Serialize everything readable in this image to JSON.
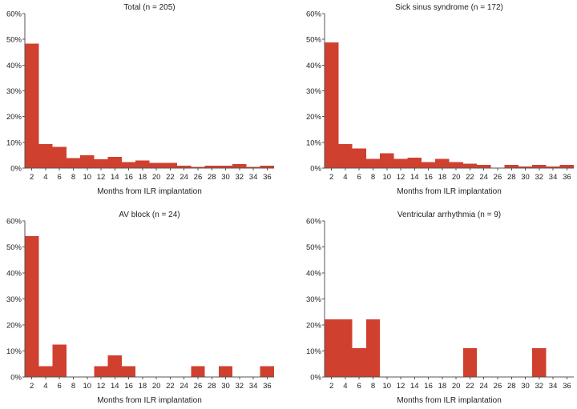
{
  "colors": {
    "bar": "#d0402f",
    "axis": "#555555"
  },
  "chart_data": [
    {
      "type": "bar",
      "id": "total",
      "title": "Total (n = 205)",
      "xlabel": "Months from ILR implantation",
      "ylabel": "",
      "ylim": [
        0,
        60
      ],
      "xlim": [
        1,
        37
      ],
      "bin_width": 2,
      "y_ticks": [
        0,
        10,
        20,
        30,
        40,
        50,
        60
      ],
      "y_tick_labels": [
        "0%",
        "10%",
        "20%",
        "30%",
        "40%",
        "50%",
        "60%"
      ],
      "x_ticks": [
        2,
        4,
        6,
        8,
        10,
        12,
        14,
        16,
        18,
        20,
        22,
        24,
        26,
        28,
        30,
        32,
        34,
        36
      ],
      "x_tick_labels": [
        "2",
        "4",
        "6",
        "8",
        "10",
        "12",
        "14",
        "16",
        "18",
        "20",
        "22",
        "24",
        "26",
        "28",
        "30",
        "32",
        "34",
        "36"
      ],
      "bins_start": [
        1,
        3,
        5,
        7,
        9,
        11,
        13,
        15,
        17,
        19,
        21,
        23,
        25,
        27,
        29,
        31,
        33,
        35
      ],
      "values": [
        48.3,
        9.3,
        8.3,
        3.9,
        4.9,
        3.4,
        4.4,
        2.4,
        2.9,
        2.0,
        2.0,
        1.0,
        0.5,
        1.0,
        1.0,
        1.5,
        0.5,
        1.0
      ]
    },
    {
      "type": "bar",
      "id": "sick-sinus",
      "title": "Sick sinus syndrome (n = 172)",
      "xlabel": "Months from ILR implantation",
      "ylabel": "",
      "ylim": [
        0,
        60
      ],
      "xlim": [
        1,
        37
      ],
      "bin_width": 2,
      "y_ticks": [
        0,
        10,
        20,
        30,
        40,
        50,
        60
      ],
      "y_tick_labels": [
        "0%",
        "10%",
        "20%",
        "30%",
        "40%",
        "50%",
        "60%"
      ],
      "x_ticks": [
        2,
        4,
        6,
        8,
        10,
        12,
        14,
        16,
        18,
        20,
        22,
        24,
        26,
        28,
        30,
        32,
        34,
        36
      ],
      "x_tick_labels": [
        "2",
        "4",
        "6",
        "8",
        "10",
        "12",
        "14",
        "16",
        "18",
        "20",
        "22",
        "24",
        "26",
        "28",
        "30",
        "32",
        "34",
        "36"
      ],
      "bins_start": [
        1,
        3,
        5,
        7,
        9,
        11,
        13,
        15,
        17,
        19,
        21,
        23,
        25,
        27,
        29,
        31,
        33,
        35
      ],
      "values": [
        48.8,
        9.3,
        7.6,
        3.5,
        5.8,
        3.5,
        4.1,
        2.3,
        3.5,
        2.3,
        1.7,
        1.2,
        0,
        1.2,
        0.6,
        1.2,
        0.6,
        1.2
      ]
    },
    {
      "type": "bar",
      "id": "av-block",
      "title": "AV block (n = 24)",
      "xlabel": "Months from ILR implantation",
      "ylabel": "",
      "ylim": [
        0,
        60
      ],
      "xlim": [
        1,
        37
      ],
      "bin_width": 2,
      "y_ticks": [
        0,
        10,
        20,
        30,
        40,
        50,
        60
      ],
      "y_tick_labels": [
        "0%",
        "10%",
        "20%",
        "30%",
        "40%",
        "50%",
        "60%"
      ],
      "x_ticks": [
        2,
        4,
        6,
        8,
        10,
        12,
        14,
        16,
        18,
        20,
        22,
        24,
        26,
        28,
        30,
        32,
        34,
        36
      ],
      "x_tick_labels": [
        "2",
        "4",
        "6",
        "8",
        "10",
        "12",
        "14",
        "16",
        "18",
        "20",
        "22",
        "24",
        "26",
        "28",
        "30",
        "32",
        "34",
        "36"
      ],
      "bins_start": [
        1,
        3,
        5,
        7,
        9,
        11,
        13,
        15,
        17,
        19,
        21,
        23,
        25,
        27,
        29,
        31,
        33,
        35
      ],
      "values": [
        54.2,
        4.2,
        12.5,
        0,
        0,
        4.2,
        8.3,
        4.2,
        0,
        0,
        0,
        0,
        4.2,
        0,
        4.2,
        0,
        0,
        4.2
      ]
    },
    {
      "type": "bar",
      "id": "ventricular",
      "title": "Ventricular arrhythmia (n = 9)",
      "xlabel": "Months from ILR implantation",
      "ylabel": "",
      "ylim": [
        0,
        60
      ],
      "xlim": [
        1,
        37
      ],
      "bin_width": 2,
      "y_ticks": [
        0,
        10,
        20,
        30,
        40,
        50,
        60
      ],
      "y_tick_labels": [
        "0%",
        "10%",
        "20%",
        "30%",
        "40%",
        "50%",
        "60%"
      ],
      "x_ticks": [
        2,
        4,
        6,
        8,
        10,
        12,
        14,
        16,
        18,
        20,
        22,
        24,
        26,
        28,
        30,
        32,
        34,
        36
      ],
      "x_tick_labels": [
        "2",
        "4",
        "6",
        "8",
        "10",
        "12",
        "14",
        "16",
        "18",
        "20",
        "22",
        "24",
        "26",
        "28",
        "30",
        "32",
        "34",
        "36"
      ],
      "bins_start": [
        1,
        3,
        5,
        7,
        9,
        11,
        13,
        15,
        17,
        19,
        21,
        23,
        25,
        27,
        29,
        31,
        33,
        35
      ],
      "values": [
        22.2,
        22.2,
        11.1,
        22.2,
        0,
        0,
        0,
        0,
        0,
        0,
        11.1,
        0,
        0,
        0,
        0,
        11.1,
        0,
        0
      ]
    }
  ]
}
